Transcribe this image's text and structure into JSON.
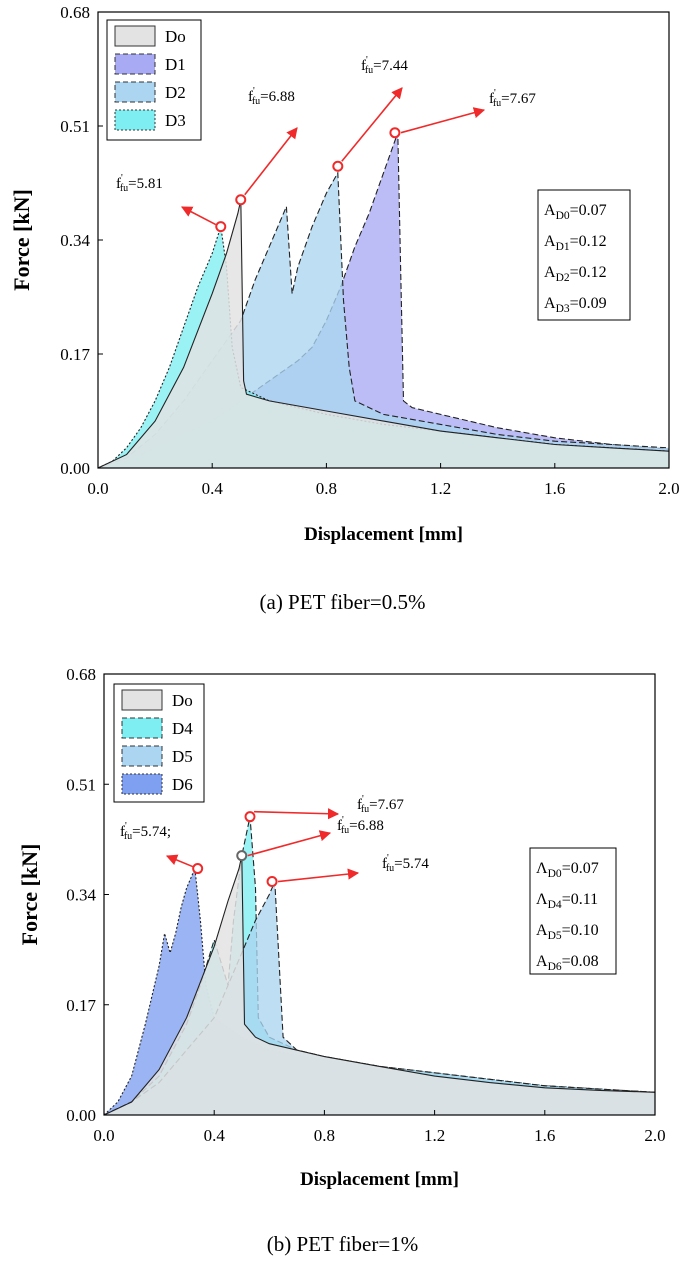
{
  "figure": {
    "captions": [
      "(a) PET fiber=0.5%",
      "(b) PET fiber=1%"
    ]
  },
  "chart_data": [
    {
      "type": "area",
      "caption": "(a) PET fiber=0.5%",
      "xlabel": "Displacement [mm]",
      "ylabel": "Force [kN]",
      "xlim": [
        0,
        2.0
      ],
      "ylim": [
        0,
        0.68
      ],
      "xticks": [
        "0.0",
        "0.4",
        "0.8",
        "1.2",
        "1.6",
        "2.0"
      ],
      "yticks": [
        "0.00",
        "0.17",
        "0.34",
        "0.51",
        "0.68"
      ],
      "legend_position": "top-left",
      "series": [
        {
          "name": "D1",
          "color": "#a9aaf4",
          "dash": "dashed",
          "x": [
            0,
            0.1,
            0.2,
            0.3,
            0.4,
            0.5,
            0.6,
            0.7,
            0.75,
            0.8,
            0.85,
            0.9,
            0.95,
            1.0,
            1.05,
            1.06,
            1.07,
            1.1,
            1.2,
            1.4,
            1.6,
            1.8,
            2.0
          ],
          "y": [
            0,
            0.01,
            0.03,
            0.05,
            0.07,
            0.1,
            0.13,
            0.16,
            0.18,
            0.22,
            0.27,
            0.33,
            0.38,
            0.44,
            0.5,
            0.3,
            0.1,
            0.09,
            0.08,
            0.06,
            0.045,
            0.035,
            0.028
          ]
        },
        {
          "name": "D2",
          "color": "#abd5f0",
          "dash": "dashed",
          "x": [
            0,
            0.1,
            0.2,
            0.3,
            0.4,
            0.5,
            0.55,
            0.6,
            0.65,
            0.66,
            0.68,
            0.7,
            0.75,
            0.8,
            0.84,
            0.86,
            0.88,
            0.9,
            1.0,
            1.2,
            1.4,
            1.6,
            1.8,
            2.0
          ],
          "y": [
            0,
            0.015,
            0.05,
            0.1,
            0.16,
            0.22,
            0.28,
            0.33,
            0.38,
            0.39,
            0.26,
            0.3,
            0.36,
            0.41,
            0.44,
            0.25,
            0.15,
            0.1,
            0.08,
            0.065,
            0.05,
            0.04,
            0.035,
            0.03
          ]
        },
        {
          "name": "D3",
          "color": "#7feef2",
          "dash": "dotted",
          "x": [
            0,
            0.05,
            0.1,
            0.15,
            0.2,
            0.25,
            0.3,
            0.35,
            0.4,
            0.43,
            0.45,
            0.47,
            0.5,
            0.55,
            0.6,
            0.7,
            0.8,
            1.0,
            1.2,
            1.4,
            1.6,
            1.8,
            2.0
          ],
          "y": [
            0,
            0.01,
            0.03,
            0.06,
            0.1,
            0.15,
            0.21,
            0.27,
            0.32,
            0.36,
            0.3,
            0.18,
            0.12,
            0.11,
            0.1,
            0.09,
            0.08,
            0.065,
            0.055,
            0.045,
            0.035,
            0.03,
            0.025
          ]
        },
        {
          "name": "Do",
          "color": "#e3e3e3",
          "dash": "solid",
          "x": [
            0,
            0.1,
            0.2,
            0.3,
            0.4,
            0.45,
            0.49,
            0.5,
            0.51,
            0.52,
            0.6,
            0.8,
            1.0,
            1.2,
            1.4,
            1.6,
            1.8,
            2.0
          ],
          "y": [
            0,
            0.02,
            0.07,
            0.15,
            0.26,
            0.32,
            0.38,
            0.4,
            0.13,
            0.11,
            0.1,
            0.085,
            0.07,
            0.055,
            0.045,
            0.035,
            0.03,
            0.025
          ]
        }
      ],
      "peaks": [
        {
          "label_main": "f",
          "label_sub": "fu",
          "value": "=5.81",
          "x": 0.43,
          "y": 0.36,
          "dir": "left"
        },
        {
          "label_main": "f",
          "label_sub": "fu",
          "value": "=6.88",
          "x": 0.5,
          "y": 0.4,
          "dir": "up"
        },
        {
          "label_main": "f",
          "label_sub": "fu",
          "value": "=7.44",
          "x": 0.84,
          "y": 0.45,
          "dir": "up"
        },
        {
          "label_main": "f",
          "label_sub": "fu",
          "value": "=7.67",
          "x": 1.04,
          "y": 0.5,
          "dir": "right"
        }
      ],
      "areas": [
        {
          "main": "A",
          "sub": "D0",
          "value": "=0.07"
        },
        {
          "main": "A",
          "sub": "D1",
          "value": "=0.12"
        },
        {
          "main": "A",
          "sub": "D2",
          "value": "=0.12"
        },
        {
          "main": "A",
          "sub": "D3",
          "value": "=0.09"
        }
      ]
    },
    {
      "type": "area",
      "caption": "(b) PET fiber=1%",
      "xlabel": "Displacement [mm]",
      "ylabel": "Force [kN]",
      "xlim": [
        0,
        2.0
      ],
      "ylim": [
        0,
        0.68
      ],
      "xticks": [
        "0.0",
        "0.4",
        "0.8",
        "1.2",
        "1.6",
        "2.0"
      ],
      "yticks": [
        "0.00",
        "0.17",
        "0.34",
        "0.51",
        "0.68"
      ],
      "legend_position": "top-left",
      "series": [
        {
          "name": "D6",
          "color": "#7f9ff0",
          "dash": "dotted",
          "x": [
            0,
            0.05,
            0.1,
            0.15,
            0.2,
            0.22,
            0.24,
            0.26,
            0.28,
            0.3,
            0.33,
            0.35,
            0.37,
            0.4,
            0.5,
            0.6,
            0.8,
            1.0,
            1.2,
            1.4,
            1.6,
            1.8,
            2.0
          ],
          "y": [
            0,
            0.02,
            0.06,
            0.14,
            0.23,
            0.28,
            0.25,
            0.28,
            0.32,
            0.35,
            0.38,
            0.3,
            0.2,
            0.15,
            0.12,
            0.1,
            0.085,
            0.07,
            0.06,
            0.05,
            0.045,
            0.04,
            0.035
          ]
        },
        {
          "name": "D4",
          "color": "#7feef2",
          "dash": "dashed",
          "x": [
            0,
            0.1,
            0.2,
            0.3,
            0.35,
            0.4,
            0.45,
            0.47,
            0.5,
            0.53,
            0.55,
            0.56,
            0.6,
            0.7,
            0.8,
            1.0,
            1.2,
            1.4,
            1.6,
            1.8,
            2.0
          ],
          "y": [
            0,
            0.02,
            0.06,
            0.14,
            0.2,
            0.27,
            0.2,
            0.3,
            0.4,
            0.46,
            0.35,
            0.15,
            0.12,
            0.1,
            0.09,
            0.075,
            0.065,
            0.055,
            0.045,
            0.04,
            0.035
          ]
        },
        {
          "name": "D5",
          "color": "#abd5f0",
          "dash": "dashed",
          "x": [
            0,
            0.1,
            0.2,
            0.3,
            0.4,
            0.45,
            0.5,
            0.55,
            0.6,
            0.62,
            0.65,
            0.7,
            0.8,
            1.0,
            1.2,
            1.4,
            1.6,
            1.8,
            2.0
          ],
          "y": [
            0,
            0.02,
            0.05,
            0.1,
            0.15,
            0.2,
            0.25,
            0.3,
            0.34,
            0.36,
            0.12,
            0.1,
            0.09,
            0.075,
            0.065,
            0.055,
            0.045,
            0.04,
            0.035
          ]
        },
        {
          "name": "Do",
          "color": "#e3e3e3",
          "dash": "solid",
          "x": [
            0,
            0.1,
            0.2,
            0.3,
            0.4,
            0.45,
            0.49,
            0.5,
            0.51,
            0.55,
            0.6,
            0.8,
            1.0,
            1.2,
            1.4,
            1.6,
            1.8,
            2.0
          ],
          "y": [
            0,
            0.02,
            0.07,
            0.15,
            0.26,
            0.33,
            0.38,
            0.4,
            0.14,
            0.12,
            0.11,
            0.09,
            0.075,
            0.06,
            0.05,
            0.042,
            0.038,
            0.035
          ]
        }
      ],
      "peaks": [
        {
          "label_main": "f",
          "label_sub": "fu",
          "value": "=5.74;",
          "x": 0.34,
          "y": 0.38,
          "dir": "left"
        },
        {
          "label_main": "f",
          "label_sub": "fu",
          "value": "=6.88",
          "x": 0.5,
          "y": 0.4,
          "dir": "right-flat"
        },
        {
          "label_main": "f",
          "label_sub": "fu",
          "value": "=7.67",
          "x": 0.53,
          "y": 0.46,
          "dir": "up"
        },
        {
          "label_main": "f",
          "label_sub": "fu",
          "value": "=5.74",
          "x": 0.61,
          "y": 0.36,
          "dir": "right"
        }
      ],
      "areas": [
        {
          "main": "Λ",
          "sub": "D0",
          "value": "=0.07"
        },
        {
          "main": "Λ",
          "sub": "D4",
          "value": "=0.11"
        },
        {
          "main": "A",
          "sub": "D5",
          "value": "=0.10"
        },
        {
          "main": "A",
          "sub": "D6",
          "value": "=0.08"
        }
      ]
    }
  ]
}
